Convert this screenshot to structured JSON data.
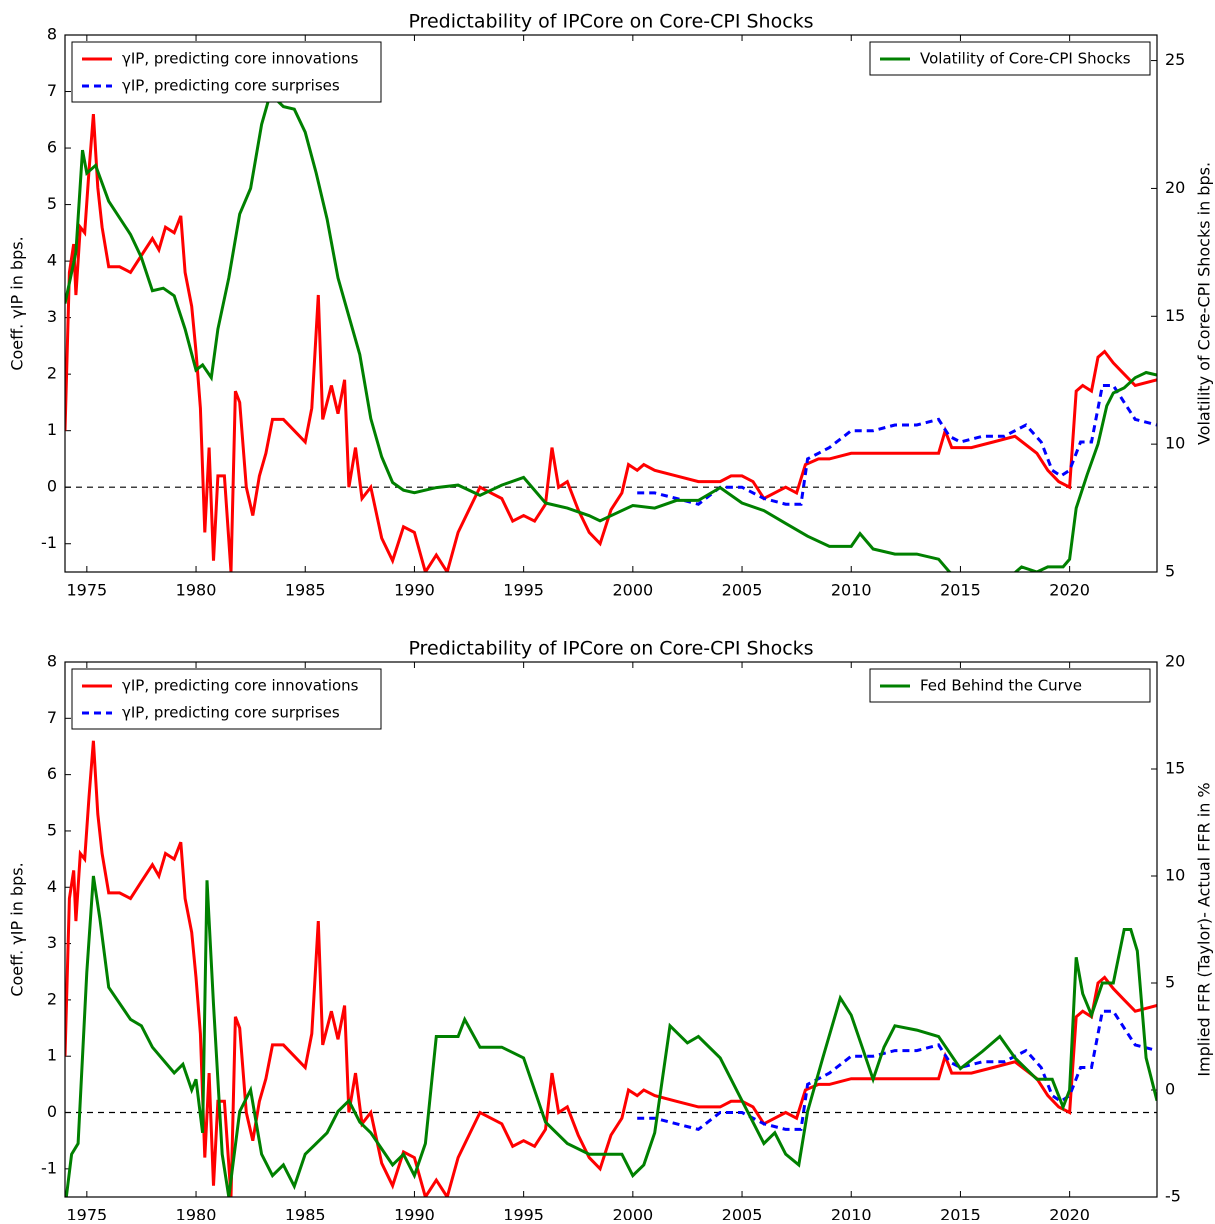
{
  "chart_data": [
    {
      "type": "line",
      "title": "Predictability of IPCore on Core-CPI Shocks",
      "ylabel": "Coeff. γIP in bps.",
      "y2label": "Volatility of Core-CPI Shocks in bps.",
      "xlim": [
        1974,
        2024
      ],
      "xticks": [
        1975,
        1980,
        1985,
        1990,
        1995,
        2000,
        2005,
        2010,
        2015,
        2020
      ],
      "ylim": [
        -1.5,
        8
      ],
      "yticks": [
        -1,
        0,
        1,
        2,
        3,
        4,
        5,
        6,
        7,
        8
      ],
      "y2lim": [
        5,
        26
      ],
      "y2ticks": [
        5,
        10,
        15,
        20,
        25
      ],
      "reference_line": 0,
      "series": [
        {
          "name": "γIP, predicting core innovations",
          "color": "#ff0000",
          "style": "solid",
          "legend": "upper left",
          "x": [
            1974.0,
            1974.2,
            1974.4,
            1974.5,
            1974.7,
            1974.9,
            1975.1,
            1975.3,
            1975.5,
            1975.7,
            1976.0,
            1976.5,
            1977.0,
            1977.5,
            1978.0,
            1978.3,
            1978.6,
            1979.0,
            1979.3,
            1979.5,
            1979.8,
            1980.0,
            1980.2,
            1980.4,
            1980.6,
            1980.8,
            1981.0,
            1981.3,
            1981.6,
            1981.8,
            1982.0,
            1982.3,
            1982.6,
            1982.9,
            1983.2,
            1983.5,
            1984.0,
            1984.5,
            1985.0,
            1985.3,
            1985.6,
            1985.8,
            1986.2,
            1986.5,
            1986.8,
            1987.0,
            1987.3,
            1987.6,
            1988.0,
            1988.5,
            1989.0,
            1989.5,
            1990.0,
            1990.5,
            1991.0,
            1991.5,
            1992.0,
            1992.5,
            1993.0,
            1993.5,
            1994.0,
            1994.5,
            1995.0,
            1995.5,
            1996.0,
            1996.3,
            1996.6,
            1997.0,
            1997.5,
            1998.0,
            1998.5,
            1999.0,
            1999.5,
            1999.8,
            2000.2,
            2000.5,
            2001.0,
            2002.0,
            2003.0,
            2004.0,
            2004.5,
            2005.0,
            2005.5,
            2006.0,
            2007.0,
            2007.5,
            2007.9,
            2008.5,
            2009.0,
            2010.0,
            2011.0,
            2012.0,
            2013.0,
            2014.0,
            2014.3,
            2014.6,
            2015.5,
            2016.5,
            2017.5,
            2018.5,
            2019.0,
            2019.5,
            2020.0,
            2020.3,
            2020.6,
            2021.0,
            2021.3,
            2021.6,
            2022.0,
            2022.5,
            2023.0,
            2024.0
          ],
          "values": [
            1.0,
            3.8,
            4.3,
            3.4,
            4.6,
            4.5,
            5.6,
            6.6,
            5.3,
            4.6,
            3.9,
            3.9,
            3.8,
            4.1,
            4.4,
            4.2,
            4.6,
            4.5,
            4.8,
            3.8,
            3.2,
            2.4,
            1.4,
            -0.8,
            0.7,
            -1.3,
            0.2,
            0.2,
            -1.5,
            1.7,
            1.5,
            0.0,
            -0.5,
            0.2,
            0.6,
            1.2,
            1.2,
            1.0,
            0.8,
            1.4,
            3.4,
            1.2,
            1.8,
            1.3,
            1.9,
            0.0,
            0.7,
            -0.2,
            0.0,
            -0.9,
            -1.3,
            -0.7,
            -0.8,
            -1.5,
            -1.2,
            -1.5,
            -0.8,
            -0.4,
            0.0,
            -0.1,
            -0.2,
            -0.6,
            -0.5,
            -0.6,
            -0.3,
            0.7,
            0.0,
            0.1,
            -0.4,
            -0.8,
            -1.0,
            -0.4,
            -0.1,
            0.4,
            0.3,
            0.4,
            0.3,
            0.2,
            0.1,
            0.1,
            0.2,
            0.2,
            0.1,
            -0.2,
            0.0,
            -0.1,
            0.4,
            0.5,
            0.5,
            0.6,
            0.6,
            0.6,
            0.6,
            0.6,
            1.0,
            0.7,
            0.7,
            0.8,
            0.9,
            0.6,
            0.3,
            0.1,
            0.0,
            1.7,
            1.8,
            1.7,
            2.3,
            2.4,
            2.2,
            2.0,
            1.8,
            1.9
          ]
        },
        {
          "name": "γIP, predicting core surprises",
          "color": "#0000ff",
          "style": "dashed",
          "legend": "upper left",
          "x": [
            2000.2,
            2001,
            2002,
            2003,
            2004,
            2005,
            2006,
            2007,
            2007.7,
            2008,
            2009,
            2010,
            2011,
            2012,
            2013,
            2014,
            2014.5,
            2015,
            2016,
            2017,
            2018,
            2018.7,
            2019.2,
            2019.6,
            2020,
            2020.5,
            2021,
            2021.5,
            2022,
            2022.5,
            2023,
            2024
          ],
          "values": [
            -0.1,
            -0.1,
            -0.2,
            -0.3,
            0.0,
            0.0,
            -0.2,
            -0.3,
            -0.3,
            0.5,
            0.7,
            1.0,
            1.0,
            1.1,
            1.1,
            1.2,
            0.9,
            0.8,
            0.9,
            0.9,
            1.1,
            0.8,
            0.3,
            0.2,
            0.3,
            0.8,
            0.8,
            1.8,
            1.8,
            1.5,
            1.2,
            1.1
          ]
        },
        {
          "name": "Volatility of Core-CPI Shocks",
          "color": "#008000",
          "style": "solid",
          "axis": "y2",
          "legend": "upper right",
          "x": [
            1974,
            1974.5,
            1974.8,
            1975.0,
            1975.4,
            1976,
            1977,
            1977.5,
            1978,
            1978.5,
            1979,
            1979.5,
            1980,
            1980.3,
            1980.7,
            1981,
            1981.5,
            1982,
            1982.5,
            1983,
            1983.4,
            1984,
            1984.5,
            1985,
            1985.5,
            1986,
            1986.5,
            1987,
            1987.5,
            1988,
            1988.5,
            1989,
            1989.5,
            1990,
            1991,
            1992,
            1993,
            1994,
            1995,
            1996,
            1997,
            1998,
            1998.5,
            1999,
            2000,
            2001,
            2002,
            2003,
            2004,
            2005,
            2006,
            2007,
            2008,
            2009,
            2010,
            2010.4,
            2011,
            2012,
            2013,
            2014,
            2014.5,
            2015,
            2017,
            2017.8,
            2018.5,
            2019,
            2019.7,
            2020,
            2020.3,
            2020.8,
            2021.3,
            2021.7,
            2022,
            2022.5,
            2023,
            2023.5,
            2024
          ],
          "values": [
            15.5,
            17.5,
            21.5,
            20.6,
            20.9,
            19.5,
            18.2,
            17.3,
            16.0,
            16.1,
            15.8,
            14.5,
            12.9,
            13.1,
            12.6,
            14.5,
            16.5,
            19.0,
            20.0,
            22.5,
            23.7,
            23.2,
            23.1,
            22.2,
            20.6,
            18.8,
            16.5,
            15.0,
            13.5,
            11.0,
            9.5,
            8.5,
            8.2,
            8.1,
            8.3,
            8.4,
            8.0,
            8.4,
            8.7,
            7.7,
            7.5,
            7.2,
            7.0,
            7.2,
            7.6,
            7.5,
            7.8,
            7.8,
            8.3,
            7.7,
            7.4,
            6.9,
            6.4,
            6.0,
            6.0,
            6.5,
            5.9,
            5.7,
            5.7,
            5.5,
            5.0,
            4.7,
            4.6,
            5.2,
            5.0,
            5.2,
            5.2,
            5.5,
            7.5,
            8.8,
            10.0,
            11.5,
            12.0,
            12.2,
            12.6,
            12.8,
            12.7
          ]
        }
      ]
    },
    {
      "type": "line",
      "title": "Predictability of IPCore on Core-CPI Shocks",
      "ylabel": "Coeff. γIP in bps.",
      "y2label": "Implied FFR (Taylor)- Actual FFR in %",
      "xlim": [
        1974,
        2024
      ],
      "xticks": [
        1975,
        1980,
        1985,
        1990,
        1995,
        2000,
        2005,
        2010,
        2015,
        2020
      ],
      "ylim": [
        -1.5,
        8
      ],
      "yticks": [
        -1,
        0,
        1,
        2,
        3,
        4,
        5,
        6,
        7,
        8
      ],
      "y2lim": [
        -5,
        20
      ],
      "y2ticks": [
        -5,
        0,
        5,
        10,
        15,
        20
      ],
      "reference_line": 0,
      "series": [
        {
          "name": "γIP, predicting core innovations",
          "color": "#ff0000",
          "style": "solid",
          "legend": "upper left",
          "x": [
            1974.0,
            1974.2,
            1974.4,
            1974.5,
            1974.7,
            1974.9,
            1975.1,
            1975.3,
            1975.5,
            1975.7,
            1976.0,
            1976.5,
            1977.0,
            1977.5,
            1978.0,
            1978.3,
            1978.6,
            1979.0,
            1979.3,
            1979.5,
            1979.8,
            1980.0,
            1980.2,
            1980.4,
            1980.6,
            1980.8,
            1981.0,
            1981.3,
            1981.6,
            1981.8,
            1982.0,
            1982.3,
            1982.6,
            1982.9,
            1983.2,
            1983.5,
            1984.0,
            1984.5,
            1985.0,
            1985.3,
            1985.6,
            1985.8,
            1986.2,
            1986.5,
            1986.8,
            1987.0,
            1987.3,
            1987.6,
            1988.0,
            1988.5,
            1989.0,
            1989.5,
            1990.0,
            1990.5,
            1991.0,
            1991.5,
            1992.0,
            1992.5,
            1993.0,
            1993.5,
            1994.0,
            1994.5,
            1995.0,
            1995.5,
            1996.0,
            1996.3,
            1996.6,
            1997.0,
            1997.5,
            1998.0,
            1998.5,
            1999.0,
            1999.5,
            1999.8,
            2000.2,
            2000.5,
            2001.0,
            2002.0,
            2003.0,
            2004.0,
            2004.5,
            2005.0,
            2005.5,
            2006.0,
            2007.0,
            2007.5,
            2007.9,
            2008.5,
            2009.0,
            2010.0,
            2011.0,
            2012.0,
            2013.0,
            2014.0,
            2014.3,
            2014.6,
            2015.5,
            2016.5,
            2017.5,
            2018.5,
            2019.0,
            2019.5,
            2020.0,
            2020.3,
            2020.6,
            2021.0,
            2021.3,
            2021.6,
            2022.0,
            2022.5,
            2023.0,
            2024.0
          ],
          "values": [
            1.0,
            3.8,
            4.3,
            3.4,
            4.6,
            4.5,
            5.6,
            6.6,
            5.3,
            4.6,
            3.9,
            3.9,
            3.8,
            4.1,
            4.4,
            4.2,
            4.6,
            4.5,
            4.8,
            3.8,
            3.2,
            2.4,
            1.4,
            -0.8,
            0.7,
            -1.3,
            0.2,
            0.2,
            -1.5,
            1.7,
            1.5,
            0.0,
            -0.5,
            0.2,
            0.6,
            1.2,
            1.2,
            1.0,
            0.8,
            1.4,
            3.4,
            1.2,
            1.8,
            1.3,
            1.9,
            0.0,
            0.7,
            -0.2,
            0.0,
            -0.9,
            -1.3,
            -0.7,
            -0.8,
            -1.5,
            -1.2,
            -1.5,
            -0.8,
            -0.4,
            0.0,
            -0.1,
            -0.2,
            -0.6,
            -0.5,
            -0.6,
            -0.3,
            0.7,
            0.0,
            0.1,
            -0.4,
            -0.8,
            -1.0,
            -0.4,
            -0.1,
            0.4,
            0.3,
            0.4,
            0.3,
            0.2,
            0.1,
            0.1,
            0.2,
            0.2,
            0.1,
            -0.2,
            0.0,
            -0.1,
            0.4,
            0.5,
            0.5,
            0.6,
            0.6,
            0.6,
            0.6,
            0.6,
            1.0,
            0.7,
            0.7,
            0.8,
            0.9,
            0.6,
            0.3,
            0.1,
            0.0,
            1.7,
            1.8,
            1.7,
            2.3,
            2.4,
            2.2,
            2.0,
            1.8,
            1.9
          ]
        },
        {
          "name": "γIP, predicting core surprises",
          "color": "#0000ff",
          "style": "dashed",
          "legend": "upper left",
          "x": [
            2000.2,
            2001,
            2002,
            2003,
            2004,
            2005,
            2006,
            2007,
            2007.7,
            2008,
            2009,
            2010,
            2011,
            2012,
            2013,
            2014,
            2014.5,
            2015,
            2016,
            2017,
            2018,
            2018.7,
            2019.2,
            2019.6,
            2020,
            2020.5,
            2021,
            2021.5,
            2022,
            2022.5,
            2023,
            2024
          ],
          "values": [
            -0.1,
            -0.1,
            -0.2,
            -0.3,
            0.0,
            0.0,
            -0.2,
            -0.3,
            -0.3,
            0.5,
            0.7,
            1.0,
            1.0,
            1.1,
            1.1,
            1.2,
            0.9,
            0.8,
            0.9,
            0.9,
            1.1,
            0.8,
            0.3,
            0.2,
            0.3,
            0.8,
            0.8,
            1.8,
            1.8,
            1.5,
            1.2,
            1.1
          ]
        },
        {
          "name": "Fed Behind the Curve",
          "color": "#008000",
          "style": "solid",
          "axis": "y2",
          "legend": "upper right",
          "x": [
            1974,
            1974.3,
            1974.6,
            1975.0,
            1975.3,
            1975.6,
            1976,
            1977,
            1977.5,
            1978,
            1979,
            1979.4,
            1979.8,
            1980,
            1980.3,
            1980.5,
            1980.8,
            1981.2,
            1981.5,
            1982,
            1982.5,
            1983,
            1983.5,
            1984,
            1984.5,
            1985,
            1985.5,
            1986,
            1986.5,
            1987,
            1987.5,
            1988,
            1989,
            1989.5,
            1990,
            1990.5,
            1991.0,
            1992,
            1992.3,
            1993,
            1994,
            1995,
            1996,
            1997,
            1998,
            1999,
            1999.5,
            2000,
            2000.5,
            2001,
            2001.7,
            2002.5,
            2003,
            2004,
            2005,
            2006,
            2006.5,
            2007,
            2007.6,
            2008,
            2008.7,
            2009.5,
            2010,
            2010.5,
            2011,
            2011.5,
            2012,
            2013,
            2014,
            2015,
            2016,
            2016.8,
            2017.5,
            2018.5,
            2019.2,
            2019.7,
            2020,
            2020.3,
            2020.6,
            2021,
            2021.5,
            2022,
            2022.5,
            2022.8,
            2023.1,
            2023.5,
            2024
          ],
          "values": [
            -5.5,
            -3.0,
            -2.5,
            5.5,
            10.0,
            8.0,
            4.8,
            3.3,
            3.0,
            2.0,
            0.8,
            1.2,
            0.0,
            0.5,
            -2.0,
            9.8,
            4.0,
            -3.0,
            -5.0,
            -1.0,
            0.0,
            -3.0,
            -4.0,
            -3.5,
            -4.5,
            -3.0,
            -2.5,
            -2.0,
            -1.0,
            -0.5,
            -1.5,
            -2.0,
            -3.5,
            -3.0,
            -4.0,
            -2.5,
            2.5,
            2.5,
            3.3,
            2.0,
            2.0,
            1.5,
            -1.5,
            -2.5,
            -3.0,
            -3.0,
            -3.0,
            -4.0,
            -3.5,
            -2.0,
            3.0,
            2.2,
            2.5,
            1.5,
            -0.5,
            -2.5,
            -2.0,
            -3.0,
            -3.5,
            -1.0,
            1.5,
            4.3,
            3.5,
            2.0,
            0.5,
            2.0,
            3.0,
            2.8,
            2.5,
            1.0,
            1.8,
            2.5,
            1.5,
            0.5,
            0.5,
            -0.8,
            0.0,
            6.2,
            4.5,
            3.5,
            5.0,
            5.0,
            7.5,
            7.5,
            6.5,
            1.5,
            -0.5
          ]
        }
      ]
    }
  ]
}
